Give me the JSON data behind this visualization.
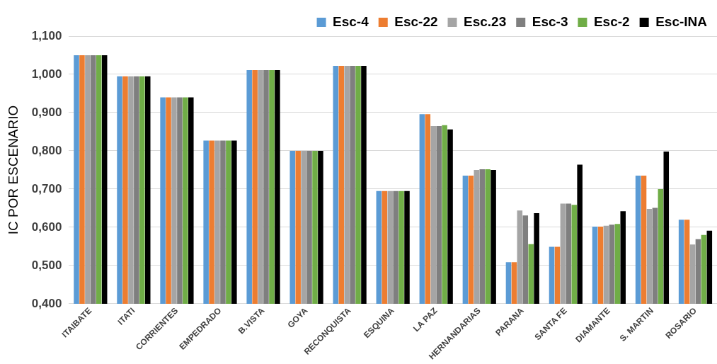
{
  "chart_data": {
    "type": "bar",
    "ylabel": "IC POR ESCENARIO",
    "categories": [
      "ITAIBATE",
      "ITATI",
      "CORRIENTES",
      "EMPEDRADO",
      "B.VISTA",
      "GOYA",
      "RECONQUISTA",
      "ESQUINA",
      "LA PAZ",
      "HERNANDARIAS",
      "PARANA",
      "SANTA FE",
      "DIAMANTE",
      "S. MARTIN",
      "ROSARIO"
    ],
    "series": [
      {
        "name": "Esc-4",
        "color": "#5b9bd5",
        "values": [
          1.05,
          0.995,
          0.94,
          0.827,
          1.011,
          0.8,
          1.022,
          0.695,
          0.896,
          0.735,
          0.509,
          0.549,
          0.602,
          0.735,
          0.62
        ]
      },
      {
        "name": "Esc-22",
        "color": "#ed7d31",
        "values": [
          1.05,
          0.995,
          0.94,
          0.827,
          1.011,
          0.8,
          1.022,
          0.695,
          0.896,
          0.735,
          0.509,
          0.549,
          0.602,
          0.735,
          0.62
        ]
      },
      {
        "name": "Esc.23",
        "color": "#a5a5a5",
        "values": [
          1.05,
          0.995,
          0.94,
          0.827,
          1.011,
          0.8,
          1.022,
          0.695,
          0.865,
          0.75,
          0.644,
          0.662,
          0.604,
          0.648,
          0.555
        ]
      },
      {
        "name": "Esc-3",
        "color": "#7f7f7f",
        "values": [
          1.05,
          0.995,
          0.94,
          0.827,
          1.011,
          0.8,
          1.022,
          0.695,
          0.865,
          0.752,
          0.631,
          0.662,
          0.607,
          0.651,
          0.569
        ]
      },
      {
        "name": "Esc-2",
        "color": "#70ad47",
        "values": [
          1.05,
          0.995,
          0.94,
          0.827,
          1.011,
          0.8,
          1.022,
          0.695,
          0.867,
          0.752,
          0.556,
          0.659,
          0.609,
          0.7,
          0.58
        ]
      },
      {
        "name": "Esc-INA",
        "color": "#000000",
        "values": [
          1.05,
          0.995,
          0.94,
          0.827,
          1.011,
          0.8,
          1.022,
          0.695,
          0.856,
          0.75,
          0.637,
          0.764,
          0.642,
          0.798,
          0.591
        ]
      }
    ],
    "ylim": [
      0.4,
      1.1
    ],
    "yticks": [
      {
        "value": 0.4,
        "label": "0,400"
      },
      {
        "value": 0.5,
        "label": "0,500"
      },
      {
        "value": 0.6,
        "label": "0,600"
      },
      {
        "value": 0.7,
        "label": "0,700"
      },
      {
        "value": 0.8,
        "label": "0,800"
      },
      {
        "value": 0.9,
        "label": "0,900"
      },
      {
        "value": 1.0,
        "label": "1,000"
      },
      {
        "value": 1.1,
        "label": "1,100"
      }
    ],
    "grid": "y",
    "legend": "top right"
  }
}
